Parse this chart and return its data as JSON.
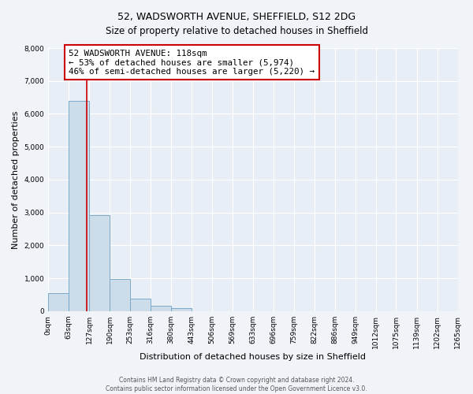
{
  "title": "52, WADSWORTH AVENUE, SHEFFIELD, S12 2DG",
  "subtitle": "Size of property relative to detached houses in Sheffield",
  "xlabel": "Distribution of detached houses by size in Sheffield",
  "ylabel": "Number of detached properties",
  "bin_edges": [
    0,
    63,
    127,
    190,
    253,
    316,
    380,
    443,
    506,
    569,
    633,
    696,
    759,
    822,
    886,
    949,
    1012,
    1075,
    1139,
    1202,
    1265
  ],
  "bin_labels": [
    "0sqm",
    "63sqm",
    "127sqm",
    "190sqm",
    "253sqm",
    "316sqm",
    "380sqm",
    "443sqm",
    "506sqm",
    "569sqm",
    "633sqm",
    "696sqm",
    "759sqm",
    "822sqm",
    "886sqm",
    "949sqm",
    "1012sqm",
    "1075sqm",
    "1139sqm",
    "1202sqm",
    "1265sqm"
  ],
  "bar_heights": [
    560,
    6400,
    2930,
    990,
    380,
    175,
    90,
    0,
    0,
    0,
    0,
    0,
    0,
    0,
    0,
    0,
    0,
    0,
    0,
    0
  ],
  "bar_color": "#ccdce8",
  "bar_edge_color": "#7aaac8",
  "vline_x": 118,
  "vline_color": "#cc0000",
  "ylim": [
    0,
    8000
  ],
  "yticks": [
    0,
    1000,
    2000,
    3000,
    4000,
    5000,
    6000,
    7000,
    8000
  ],
  "annotation_line1": "52 WADSWORTH AVENUE: 118sqm",
  "annotation_line2": "← 53% of detached houses are smaller (5,974)",
  "annotation_line3": "46% of semi-detached houses are larger (5,220) →",
  "annotation_box_facecolor": "#ffffff",
  "annotation_box_edgecolor": "#cc0000",
  "footer_line1": "Contains HM Land Registry data © Crown copyright and database right 2024.",
  "footer_line2": "Contains public sector information licensed under the Open Government Licence v3.0.",
  "fig_facecolor": "#f0f4f8",
  "plot_facecolor": "#e8eef5",
  "grid_color": "#ffffff",
  "title_fontsize": 9,
  "subtitle_fontsize": 8.5,
  "ylabel_fontsize": 8,
  "xlabel_fontsize": 8,
  "tick_fontsize": 6.5,
  "annotation_fontsize": 7.8,
  "footer_fontsize": 5.5
}
